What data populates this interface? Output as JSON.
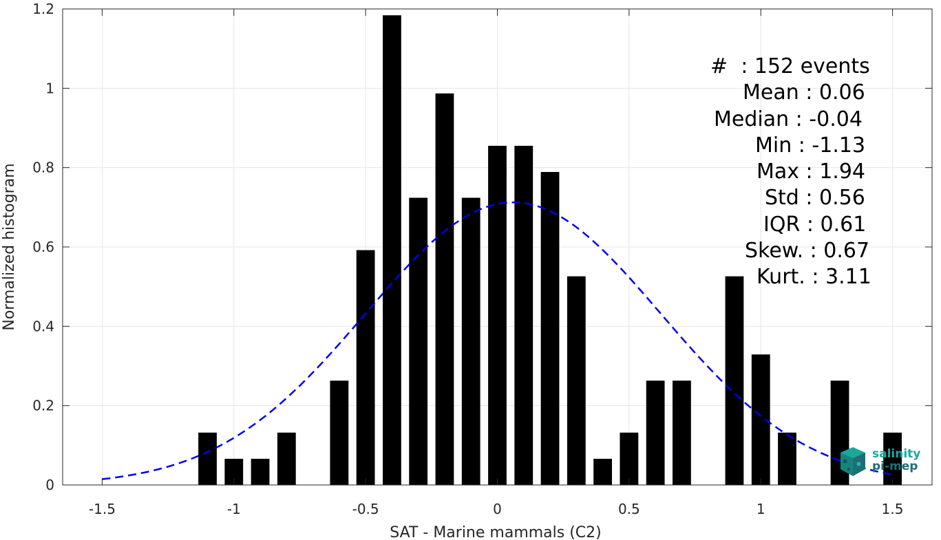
{
  "chart_data": {
    "type": "bar",
    "xlabel": "SAT - Marine mammals (C2)",
    "ylabel": "Normalized histogram",
    "xlim": [
      -1.65,
      1.65
    ],
    "ylim": [
      0,
      1.2
    ],
    "xticks": [
      "-1.5",
      "-1",
      "-0.5",
      "0",
      "0.5",
      "1",
      "1.5"
    ],
    "xtick_values": [
      -1.5,
      -1,
      -0.5,
      0,
      0.5,
      1,
      1.5
    ],
    "yticks": [
      "0",
      "0.2",
      "0.4",
      "0.6",
      "0.8",
      "1",
      "1.2"
    ],
    "ytick_values": [
      0,
      0.2,
      0.4,
      0.6,
      0.8,
      1.0,
      1.2
    ],
    "grid": true,
    "bar_width": 0.07,
    "bar_color": "#000000",
    "x": [
      -1.1,
      -1.0,
      -0.9,
      -0.8,
      -0.6,
      -0.5,
      -0.4,
      -0.3,
      -0.2,
      -0.1,
      0.0,
      0.1,
      0.2,
      0.3,
      0.4,
      0.5,
      0.6,
      0.7,
      0.9,
      1.0,
      1.1,
      1.3,
      1.5
    ],
    "values": [
      0.132,
      0.066,
      0.066,
      0.132,
      0.263,
      0.592,
      1.184,
      0.724,
      0.987,
      0.724,
      0.855,
      0.855,
      0.789,
      0.526,
      0.066,
      0.132,
      0.263,
      0.263,
      0.526,
      0.329,
      0.132,
      0.263,
      0.132
    ],
    "fit": {
      "type": "normal",
      "mean": 0.06,
      "std": 0.56,
      "x_range": [
        -1.5,
        1.5
      ],
      "style": "dashed",
      "color": "#0000ee"
    }
  },
  "stats": {
    "events": "#  : 152 events",
    "mean": "Mean : 0.06",
    "median": "Median : -0.04",
    "min": "Min : -1.13",
    "max": "Max : 1.94",
    "std": "Std : 0.56",
    "iqr": "IQR : 0.61",
    "skew": "Skew. : 0.67",
    "kurt": "Kurt. : 3.11"
  },
  "logo": {
    "line1": "salinity",
    "line2": "pi-mep",
    "color1": "#1aa89a",
    "color2": "#1d6f77"
  }
}
